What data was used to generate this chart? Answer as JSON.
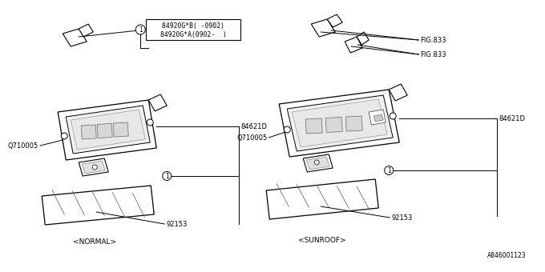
{
  "bg_color": "#ffffff",
  "line_color": "#000000",
  "part_number_lines": [
    "84920G*B( -0902)",
    "84920G*A(0902-  )"
  ],
  "left_caption": "<NORMAL>",
  "right_caption": "<SUNROOF>",
  "footer": "A846001123",
  "labels": {
    "q710005_l": "Q710005",
    "84621d_l": "84621D",
    "92153_l": "92153",
    "fig833_1": "FIG.833",
    "fig833_2": "FIG.833",
    "q710005_r": "Q710005",
    "84621d_r": "84621D",
    "92153_r": "92153"
  }
}
